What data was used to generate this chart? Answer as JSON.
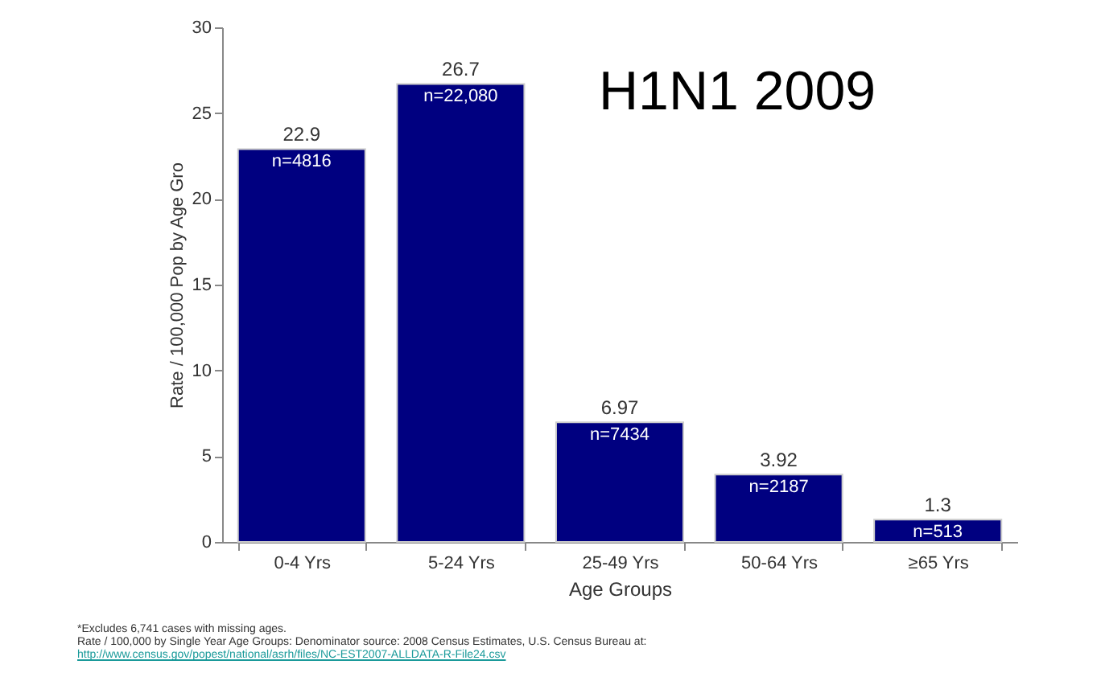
{
  "chart_data": {
    "type": "bar",
    "title": "H1N1 2009",
    "xlabel": "Age Groups",
    "ylabel": "Rate / 100,000 Pop by Age Gro",
    "categories": [
      "0-4 Yrs",
      "5-24 Yrs",
      "25-49 Yrs",
      "50-64 Yrs",
      "≥65  Yrs"
    ],
    "series": [
      {
        "color": "#000080",
        "values": [
          22.9,
          26.7,
          6.97,
          3.92,
          1.3
        ]
      }
    ],
    "data_labels": true,
    "ylim": [
      0,
      30
    ],
    "yticks": [
      0,
      5,
      10,
      15,
      20,
      25,
      30
    ],
    "grid": false,
    "annotations": [
      {
        "text": "n=4816",
        "x": "0-4 Yrs",
        "y": 22.9
      },
      {
        "text": "n=22,080",
        "x": "5-24 Yrs",
        "y": 26.7
      },
      {
        "text": "n=7434",
        "x": "25-49 Yrs",
        "y": 6.97
      },
      {
        "text": "n=2187",
        "x": "50-64 Yrs",
        "y": 3.92
      },
      {
        "text": "n=513",
        "x": "≥65  Yrs",
        "y": 1.3
      },
      "*Excludes 6,741 cases with missing ages.",
      "Rate / 100,000 by Single Year Age Groups: Denominator source: 2008 Census Estimates, U.S. Census Bureau at:",
      "http://www.census.gov/popest/national/asrh/files/NC-EST2007-ALLDATA-R-File24.csv"
    ]
  }
}
